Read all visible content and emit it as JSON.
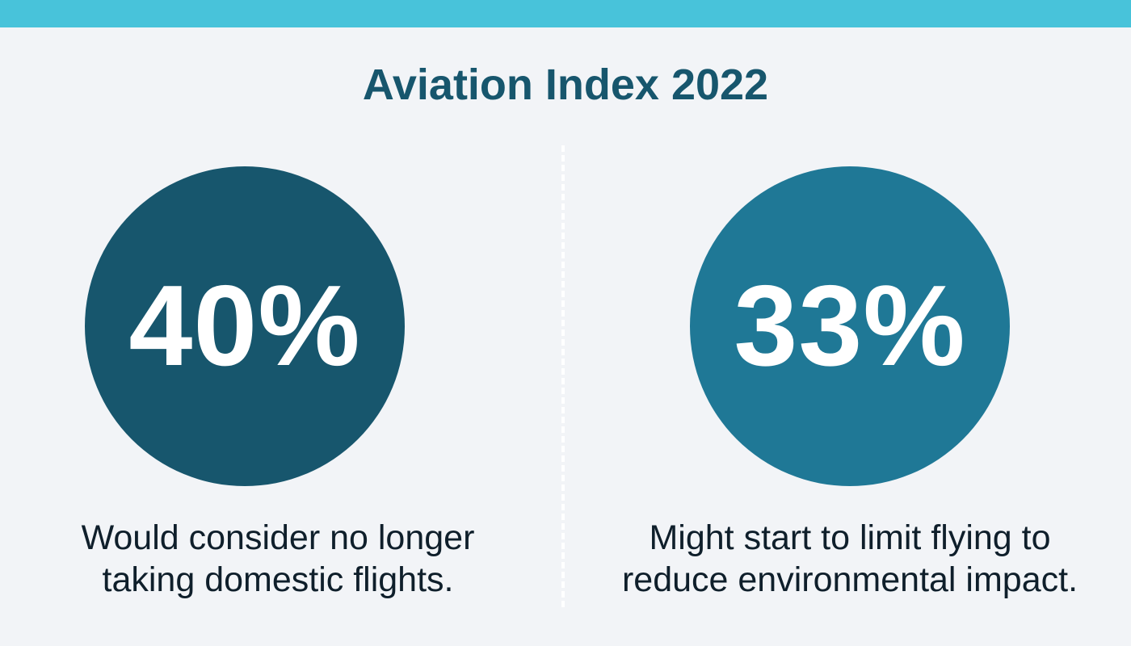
{
  "header": {
    "title": "Aviation Index 2022",
    "accent_color": "#48c3da",
    "title_color": "#17566d"
  },
  "stats": [
    {
      "value": "40%",
      "caption_lines": [
        "Would consider no longer",
        "taking domestic flights."
      ],
      "circle_color": "#17566d"
    },
    {
      "value": "33%",
      "caption_lines": [
        "Might start to limit flying to",
        "reduce environmental impact."
      ],
      "circle_color": "#1f7896"
    }
  ]
}
